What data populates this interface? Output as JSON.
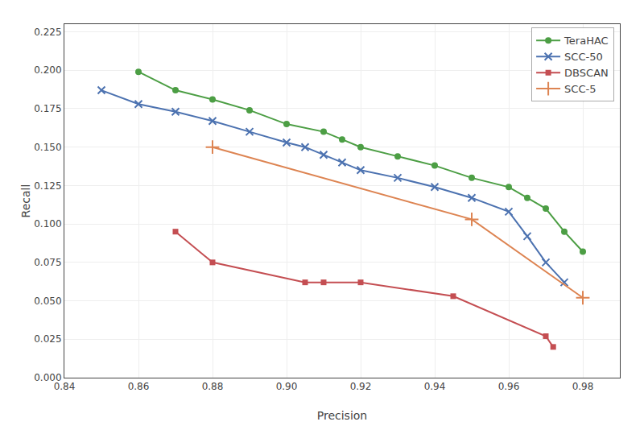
{
  "chart_data": {
    "type": "line",
    "x_label": "Precision",
    "y_label": "Recall",
    "series": [
      {
        "name": "TeraHAC",
        "color": "#4c9e44",
        "marker": "circle",
        "x": [
          0.86,
          0.87,
          0.88,
          0.89,
          0.9,
          0.91,
          0.915,
          0.92,
          0.93,
          0.94,
          0.95,
          0.96,
          0.965,
          0.97,
          0.975,
          0.98
        ],
        "values": [
          0.199,
          0.187,
          0.181,
          0.174,
          0.165,
          0.16,
          0.155,
          0.15,
          0.144,
          0.138,
          0.13,
          0.124,
          0.117,
          0.11,
          0.095,
          0.082
        ]
      },
      {
        "name": "SCC-50",
        "color": "#4c72b0",
        "marker": "x",
        "x": [
          0.85,
          0.86,
          0.87,
          0.88,
          0.89,
          0.9,
          0.905,
          0.91,
          0.915,
          0.92,
          0.93,
          0.94,
          0.95,
          0.96,
          0.965,
          0.97,
          0.975
        ],
        "values": [
          0.187,
          0.178,
          0.173,
          0.167,
          0.16,
          0.153,
          0.15,
          0.145,
          0.14,
          0.135,
          0.13,
          0.124,
          0.117,
          0.108,
          0.092,
          0.075,
          0.062
        ]
      },
      {
        "name": "DBSCAN",
        "color": "#c44e52",
        "marker": "square",
        "x": [
          0.87,
          0.88,
          0.905,
          0.91,
          0.92,
          0.945,
          0.97,
          0.972
        ],
        "values": [
          0.095,
          0.075,
          0.062,
          0.062,
          0.062,
          0.053,
          0.027,
          0.02
        ]
      },
      {
        "name": "SCC-5",
        "color": "#dd8452",
        "marker": "plus",
        "x": [
          0.88,
          0.95,
          0.98
        ],
        "values": [
          0.15,
          0.103,
          0.052
        ]
      }
    ],
    "xlim": [
      0.84,
      0.99
    ],
    "ylim": [
      0.0,
      0.23
    ],
    "xticks": [
      0.84,
      {
        "value": 0.86,
        "label": "0.86"
      },
      {
        "value": 0.88,
        "label": "0.88"
      },
      {
        "value": 0.9,
        "label": "0.90"
      },
      0.92,
      0.94,
      0.96,
      0.98
    ],
    "yticks": [
      {
        "value": 0,
        "label": "0.000"
      },
      0.025,
      {
        "value": 0.05,
        "label": "0.050"
      },
      0.075,
      {
        "value": 0.1,
        "label": "0.100"
      },
      0.125,
      {
        "value": 0.15,
        "label": "0.150"
      },
      0.175,
      {
        "value": 0.2,
        "label": "0.200"
      },
      0.225
    ],
    "grid": true,
    "legend": "upper right"
  }
}
